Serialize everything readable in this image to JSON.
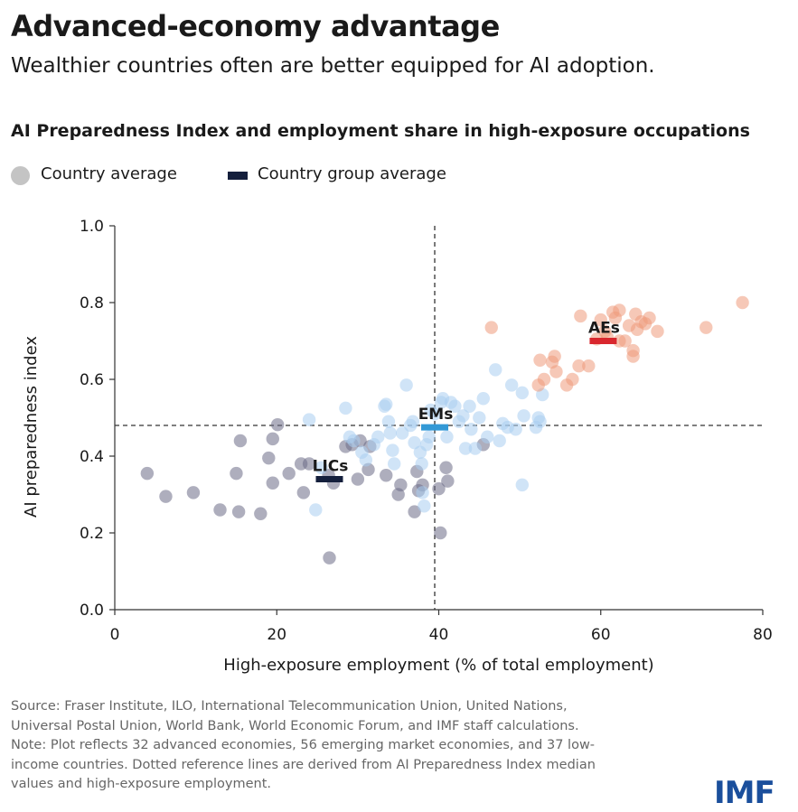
{
  "header": {
    "title": "Advanced-economy advantage",
    "subtitle": "Wealthier countries often are better equipped for AI adoption.",
    "chart_title": "AI Preparedness Index and employment share in high-exposure occupations"
  },
  "legend": {
    "country_label": "Country average",
    "group_label": "Country group average"
  },
  "colors": {
    "lic": "#6b6b86",
    "em": "#a9cdf0",
    "ae": "#ee9a7c",
    "lic_group": "#141f3c",
    "em_group": "#3399d6",
    "ae_group": "#d9272e",
    "logo": "#1b4f9c"
  },
  "chart_data": {
    "type": "scatter",
    "xlabel": "High-exposure employment (% of total employment)",
    "ylabel": "AI preparedness index",
    "xlim": [
      0,
      80
    ],
    "ylim": [
      0,
      1.0
    ],
    "x_ticks": [
      0,
      20,
      40,
      60,
      80
    ],
    "y_ticks": [
      0.0,
      0.2,
      0.4,
      0.6,
      0.8,
      1.0
    ],
    "x_tick_labels": [
      "0",
      "20",
      "40",
      "60",
      "80"
    ],
    "y_tick_labels": [
      "0.0",
      "0.2",
      "0.4",
      "0.6",
      "0.8",
      "1.0"
    ],
    "reference_lines": {
      "x": 39.5,
      "y": 0.48
    },
    "groups": [
      {
        "label": "LICs",
        "x": 26.5,
        "y": 0.34
      },
      {
        "label": "EMs",
        "x": 39.5,
        "y": 0.475
      },
      {
        "label": "AEs",
        "x": 60.3,
        "y": 0.7
      }
    ],
    "series": [
      {
        "key": "lic",
        "points": [
          [
            4,
            0.355
          ],
          [
            6.3,
            0.295
          ],
          [
            9.7,
            0.305
          ],
          [
            13,
            0.26
          ],
          [
            15.3,
            0.255
          ],
          [
            15,
            0.355
          ],
          [
            15.5,
            0.44
          ],
          [
            18,
            0.25
          ],
          [
            19,
            0.395
          ],
          [
            19.5,
            0.33
          ],
          [
            19.5,
            0.445
          ],
          [
            20.1,
            0.482
          ],
          [
            21.5,
            0.355
          ],
          [
            23,
            0.38
          ],
          [
            23.3,
            0.305
          ],
          [
            24,
            0.38
          ],
          [
            26.5,
            0.135
          ],
          [
            26.4,
            0.35
          ],
          [
            27,
            0.33
          ],
          [
            28.5,
            0.425
          ],
          [
            29.3,
            0.43
          ],
          [
            30,
            0.34
          ],
          [
            30.3,
            0.44
          ],
          [
            31.3,
            0.365
          ],
          [
            33.5,
            0.35
          ],
          [
            35,
            0.3
          ],
          [
            35.3,
            0.325
          ],
          [
            37,
            0.255
          ],
          [
            37.3,
            0.36
          ],
          [
            37.5,
            0.31
          ],
          [
            38,
            0.325
          ],
          [
            40,
            0.315
          ],
          [
            40.2,
            0.2
          ],
          [
            40.9,
            0.37
          ],
          [
            41.1,
            0.335
          ],
          [
            45.5,
            0.43
          ],
          [
            31.5,
            0.425
          ]
        ]
      },
      {
        "key": "em",
        "points": [
          [
            24,
            0.495
          ],
          [
            24.8,
            0.26
          ],
          [
            25.5,
            0.37
          ],
          [
            28.5,
            0.525
          ],
          [
            29.5,
            0.44
          ],
          [
            31,
            0.39
          ],
          [
            32,
            0.43
          ],
          [
            32.5,
            0.45
          ],
          [
            33.3,
            0.53
          ],
          [
            33.5,
            0.535
          ],
          [
            33.8,
            0.49
          ],
          [
            34.3,
            0.415
          ],
          [
            34.5,
            0.38
          ],
          [
            35.5,
            0.46
          ],
          [
            36,
            0.585
          ],
          [
            37,
            0.435
          ],
          [
            37.7,
            0.41
          ],
          [
            37.9,
            0.38
          ],
          [
            38,
            0.305
          ],
          [
            38.2,
            0.27
          ],
          [
            38.5,
            0.43
          ],
          [
            39,
            0.52
          ],
          [
            39.5,
            0.51
          ],
          [
            40.3,
            0.54
          ],
          [
            41.5,
            0.54
          ],
          [
            42.5,
            0.49
          ],
          [
            43,
            0.505
          ],
          [
            43.3,
            0.42
          ],
          [
            44.5,
            0.42
          ],
          [
            45,
            0.5
          ],
          [
            45.5,
            0.55
          ],
          [
            47,
            0.625
          ],
          [
            47.5,
            0.44
          ],
          [
            47.9,
            0.485
          ],
          [
            48.5,
            0.475
          ],
          [
            49,
            0.585
          ],
          [
            50.3,
            0.565
          ],
          [
            50.5,
            0.505
          ],
          [
            50.3,
            0.325
          ],
          [
            52,
            0.475
          ],
          [
            52.3,
            0.5
          ],
          [
            52.8,
            0.56
          ],
          [
            36.5,
            0.48
          ],
          [
            42,
            0.53
          ],
          [
            41,
            0.45
          ],
          [
            49.5,
            0.47
          ],
          [
            29,
            0.45
          ],
          [
            46,
            0.45
          ],
          [
            30.5,
            0.41
          ],
          [
            34,
            0.46
          ],
          [
            40.5,
            0.55
          ],
          [
            43.8,
            0.53
          ],
          [
            36.8,
            0.49
          ],
          [
            44,
            0.47
          ],
          [
            38.8,
            0.45
          ],
          [
            52.5,
            0.49
          ]
        ]
      },
      {
        "key": "ae",
        "points": [
          [
            46.5,
            0.735
          ],
          [
            52.3,
            0.585
          ],
          [
            52.5,
            0.65
          ],
          [
            53,
            0.6
          ],
          [
            54,
            0.645
          ],
          [
            54.3,
            0.66
          ],
          [
            55.8,
            0.585
          ],
          [
            57.3,
            0.635
          ],
          [
            57.5,
            0.765
          ],
          [
            58.5,
            0.635
          ],
          [
            60,
            0.755
          ],
          [
            60.5,
            0.725
          ],
          [
            61.5,
            0.775
          ],
          [
            62.3,
            0.78
          ],
          [
            62.3,
            0.7
          ],
          [
            63,
            0.7
          ],
          [
            64,
            0.66
          ],
          [
            64.3,
            0.77
          ],
          [
            64.5,
            0.73
          ],
          [
            65,
            0.75
          ],
          [
            65.5,
            0.745
          ],
          [
            66,
            0.76
          ],
          [
            67,
            0.725
          ],
          [
            73,
            0.735
          ],
          [
            77.5,
            0.8
          ],
          [
            60.8,
            0.71
          ],
          [
            54.5,
            0.62
          ],
          [
            64,
            0.675
          ],
          [
            63.5,
            0.74
          ],
          [
            59.5,
            0.705
          ],
          [
            56.5,
            0.6
          ],
          [
            61.8,
            0.76
          ]
        ]
      }
    ]
  },
  "footnote": {
    "source_line1": "Source: Fraser Institute, ILO, International Telecommunication Union, United Nations,",
    "source_line2": "Universal Postal Union, World Bank, World Economic Forum, and IMF staff calculations.",
    "note_line1": "Note: Plot reflects 32 advanced economies, 56 emerging market economies, and 37 low-",
    "note_line2": "income countries. Dotted reference lines are derived from AI Preparedness Index median",
    "note_line3": "values and high-exposure employment."
  },
  "logo_text": "IMF"
}
